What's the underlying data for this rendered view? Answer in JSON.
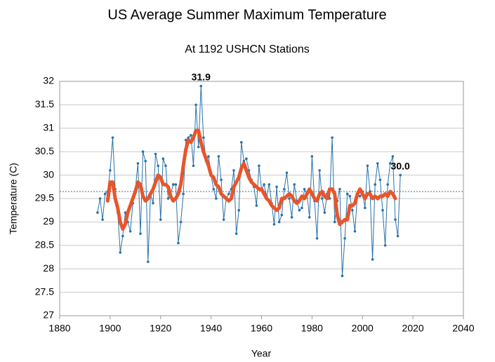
{
  "chart_data": {
    "type": "line",
    "title": "US Average Summer Maximum Temperature",
    "subtitle": "At 1192 USHCN Stations",
    "xlabel": "Year",
    "ylabel": "Temperature (C)",
    "x": [
      1895,
      1896,
      1897,
      1898,
      1899,
      1900,
      1901,
      1902,
      1903,
      1904,
      1905,
      1906,
      1907,
      1908,
      1909,
      1910,
      1911,
      1912,
      1913,
      1914,
      1915,
      1916,
      1917,
      1918,
      1919,
      1920,
      1921,
      1922,
      1923,
      1924,
      1925,
      1926,
      1927,
      1928,
      1929,
      1930,
      1931,
      1932,
      1933,
      1934,
      1935,
      1936,
      1937,
      1938,
      1939,
      1940,
      1941,
      1942,
      1943,
      1944,
      1945,
      1946,
      1947,
      1948,
      1949,
      1950,
      1951,
      1952,
      1953,
      1954,
      1955,
      1956,
      1957,
      1958,
      1959,
      1960,
      1961,
      1962,
      1963,
      1964,
      1965,
      1966,
      1967,
      1968,
      1969,
      1970,
      1971,
      1972,
      1973,
      1974,
      1975,
      1976,
      1977,
      1978,
      1979,
      1980,
      1981,
      1982,
      1983,
      1984,
      1985,
      1986,
      1987,
      1988,
      1989,
      1990,
      1991,
      1992,
      1993,
      1994,
      1995,
      1996,
      1997,
      1998,
      1999,
      2000,
      2001,
      2002,
      2003,
      2004,
      2005,
      2006,
      2007,
      2008,
      2009,
      2010,
      2011,
      2012,
      2013,
      2014,
      2015
    ],
    "series": [
      {
        "color": "#2a72a8",
        "values": [
          29.2,
          29.5,
          29.05,
          29.6,
          29.65,
          30.1,
          30.8,
          29.7,
          29.2,
          28.35,
          28.7,
          29.2,
          29.0,
          28.8,
          29.4,
          29.7,
          30.25,
          28.75,
          30.5,
          30.3,
          28.15,
          29.6,
          29.4,
          30.45,
          30.2,
          29.05,
          30.35,
          30.2,
          29.5,
          29.6,
          29.8,
          29.8,
          28.55,
          29.0,
          29.6,
          30.75,
          30.8,
          30.85,
          30.2,
          31.5,
          30.6,
          31.9,
          30.8,
          30.3,
          30.4,
          30.0,
          29.7,
          29.5,
          30.4,
          29.9,
          29.05,
          29.5,
          29.6,
          29.7,
          30.1,
          28.75,
          29.25,
          30.7,
          30.3,
          30.35,
          30.1,
          29.9,
          29.75,
          29.35,
          30.2,
          29.7,
          29.8,
          29.55,
          29.8,
          29.4,
          28.95,
          29.75,
          29.0,
          29.15,
          29.7,
          30.05,
          29.5,
          29.1,
          29.8,
          29.45,
          29.25,
          29.3,
          29.7,
          29.6,
          29.1,
          30.4,
          29.45,
          28.65,
          30.1,
          29.5,
          29.2,
          29.6,
          29.5,
          30.8,
          29.0,
          29.45,
          29.7,
          27.85,
          28.65,
          29.6,
          29.55,
          29.25,
          28.8,
          29.6,
          29.55,
          29.65,
          29.3,
          30.2,
          29.65,
          28.2,
          29.8,
          30.25,
          29.9,
          29.25,
          28.5,
          29.8,
          30.25,
          30.4,
          29.05,
          28.7,
          30.0
        ]
      },
      {
        "color": "#e8552a",
        "values": [
          null,
          null,
          null,
          null,
          29.45,
          29.85,
          29.85,
          29.5,
          29.3,
          29.0,
          28.85,
          28.95,
          29.2,
          29.35,
          29.5,
          29.65,
          29.85,
          29.8,
          29.55,
          29.45,
          29.5,
          29.6,
          29.7,
          29.85,
          30.0,
          29.95,
          29.8,
          29.8,
          29.75,
          29.55,
          29.45,
          29.5,
          29.6,
          29.8,
          30.2,
          30.55,
          30.75,
          30.7,
          30.8,
          30.95,
          30.95,
          30.7,
          30.5,
          30.35,
          30.2,
          30.0,
          29.95,
          29.8,
          29.75,
          29.6,
          29.55,
          29.5,
          29.45,
          29.5,
          29.75,
          29.85,
          29.95,
          30.15,
          30.25,
          30.1,
          29.95,
          29.85,
          29.8,
          29.75,
          29.7,
          29.7,
          29.6,
          29.5,
          29.45,
          29.35,
          29.3,
          29.25,
          29.3,
          29.5,
          29.5,
          29.55,
          29.6,
          29.55,
          29.45,
          29.4,
          29.45,
          29.55,
          29.5,
          29.6,
          29.7,
          29.6,
          29.5,
          29.45,
          29.6,
          29.65,
          29.55,
          29.5,
          29.7,
          29.7,
          29.6,
          29.15,
          28.95,
          29.0,
          29.05,
          29.05,
          29.35,
          29.35,
          29.4,
          29.6,
          29.7,
          29.6,
          29.5,
          29.6,
          29.6,
          29.5,
          29.55,
          29.5,
          29.55,
          29.55,
          29.6,
          29.55,
          29.65,
          29.6,
          29.5,
          null,
          null
        ]
      }
    ],
    "reference_line": 29.65,
    "annotations": [
      {
        "text": "31.9",
        "x": 1936,
        "y": 31.9
      },
      {
        "text": "30.0",
        "x": 2015,
        "y": 30.0
      }
    ],
    "xlim": [
      1880,
      2040
    ],
    "xticks": [
      1880,
      1900,
      1920,
      1940,
      1960,
      1980,
      2000,
      2020,
      2040
    ],
    "ylim": [
      27,
      32
    ],
    "yticks": [
      27,
      27.5,
      28,
      28.5,
      29,
      29.5,
      30,
      30.5,
      31,
      31.5,
      32
    ],
    "grid": true
  }
}
